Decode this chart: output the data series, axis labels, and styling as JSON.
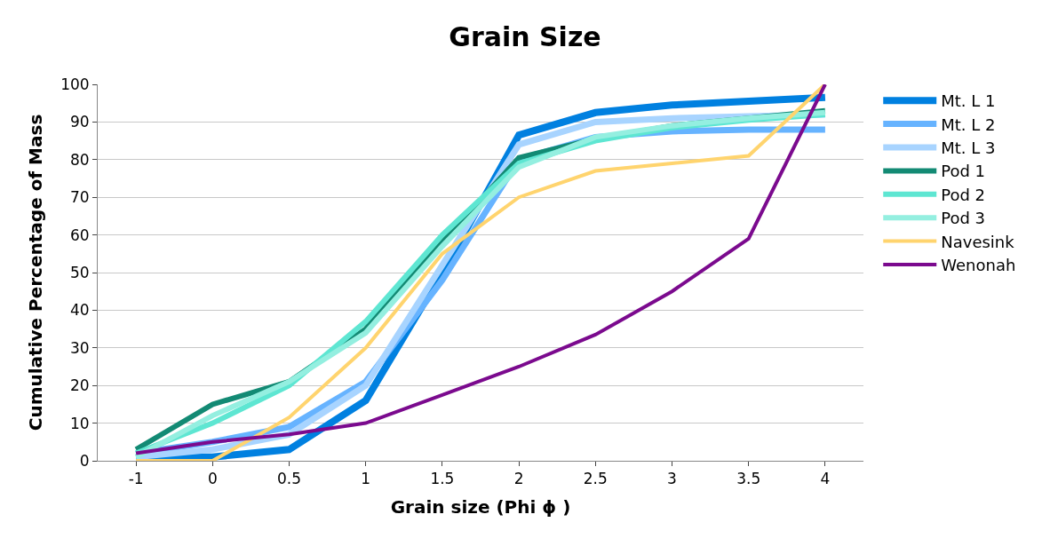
{
  "chart_data": {
    "type": "line",
    "title": "Grain Size",
    "xlabel": "Grain size (Phi ϕ )",
    "ylabel": "Cumulative Percentage of Mass",
    "categories": [
      "-1",
      "0",
      "0.5",
      "1",
      "1.5",
      "2",
      "2.5",
      "3",
      "3.5",
      "4"
    ],
    "ylim": [
      0,
      100
    ],
    "yticks": [
      0,
      10,
      20,
      30,
      40,
      50,
      60,
      70,
      80,
      90,
      100
    ],
    "grid": "y",
    "legend": "right",
    "marker": "none",
    "line_style": "solid",
    "series": [
      {
        "name": "Mt. L 1",
        "color": "#0080e0",
        "values": [
          1,
          1,
          3,
          16,
          50,
          86.5,
          92.5,
          94.5,
          95.5,
          96.5
        ]
      },
      {
        "name": "Mt. L 2",
        "color": "#66b3ff",
        "values": [
          2,
          5,
          9,
          21,
          48,
          80,
          86,
          87.5,
          88,
          88
        ]
      },
      {
        "name": "Mt. L 3",
        "color": "#a8d4ff",
        "values": [
          1,
          3,
          7,
          20,
          52,
          84,
          90,
          91,
          91.5,
          92
        ]
      },
      {
        "name": "Pod 1",
        "color": "#138a74",
        "values": [
          3,
          15,
          21,
          35,
          58,
          80.5,
          85.5,
          89,
          91,
          93
        ]
      },
      {
        "name": "Pod 2",
        "color": "#5ee6d2",
        "values": [
          2,
          10,
          20,
          37,
          60,
          79,
          85,
          88.5,
          90.5,
          92
        ]
      },
      {
        "name": "Pod 3",
        "color": "#94efe0",
        "values": [
          1,
          12,
          21,
          34,
          57,
          78,
          86,
          89,
          91,
          92.5
        ]
      },
      {
        "name": "Navesink",
        "color": "#ffd46e",
        "values": [
          0,
          0,
          11.5,
          30,
          55,
          70,
          77,
          79,
          81,
          100
        ]
      },
      {
        "name": "Wenonah",
        "color": "#7b0a8e",
        "values": [
          2,
          5,
          7,
          10,
          17.5,
          25,
          33.5,
          45,
          59,
          100
        ]
      }
    ]
  }
}
